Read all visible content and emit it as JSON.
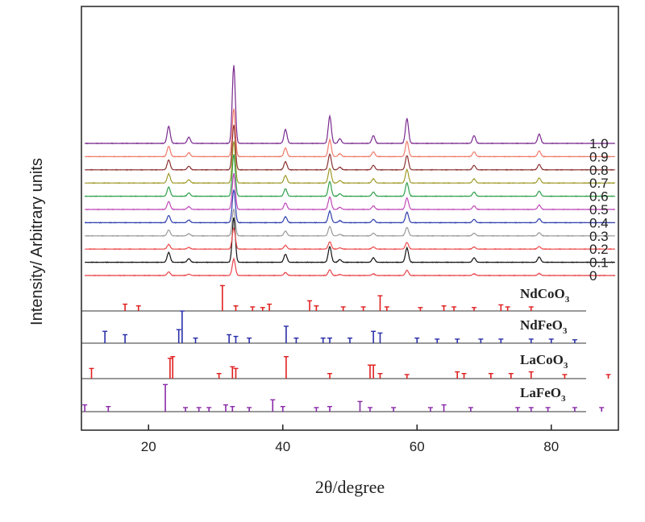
{
  "chart_data": {
    "type": "line",
    "xlabel": "2θ/degree",
    "ylabel": "Intensity/ Arbitrary units",
    "xlim": [
      10,
      90
    ],
    "xticks": [
      20,
      40,
      60,
      80
    ],
    "grid": false,
    "peaks_2theta": [
      23.0,
      26.0,
      32.7,
      40.4,
      47.0,
      48.5,
      53.5,
      58.5,
      68.5,
      78.2
    ],
    "peak_relative_intensity": [
      0.22,
      0.08,
      1.0,
      0.18,
      0.35,
      0.06,
      0.1,
      0.32,
      0.1,
      0.12
    ],
    "series": [
      {
        "label": "0",
        "color": "#e8434a",
        "peak_scale": 0.55
      },
      {
        "label": "0.1",
        "color": "#111111",
        "peak_scale": 1.5
      },
      {
        "label": "0.2",
        "color": "#ee4a4a",
        "peak_scale": 0.7
      },
      {
        "label": "0.3",
        "color": "#9a9a9a",
        "peak_scale": 0.9
      },
      {
        "label": "0.4",
        "color": "#2f3fae",
        "peak_scale": 1.1
      },
      {
        "label": "0.5",
        "color": "#c04ab8",
        "peak_scale": 1.2
      },
      {
        "label": "0.6",
        "color": "#2fa04a",
        "peak_scale": 1.4
      },
      {
        "label": "0.7",
        "color": "#9f9a2a",
        "peak_scale": 1.4
      },
      {
        "label": "0.8",
        "color": "#8a3030",
        "peak_scale": 1.5
      },
      {
        "label": "0.9",
        "color": "#f07a6a",
        "peak_scale": 1.6
      },
      {
        "label": "1.0",
        "color": "#7a2a8f",
        "peak_scale": 2.6
      }
    ],
    "references": [
      {
        "name": "NdCoO",
        "subscript": "3",
        "color": "#e02020",
        "peaks": [
          [
            16.5,
            0.2
          ],
          [
            18.5,
            0.15
          ],
          [
            31.0,
            0.75
          ],
          [
            33.0,
            0.15
          ],
          [
            35.5,
            0.12
          ],
          [
            37.0,
            0.1
          ],
          [
            38.0,
            0.2
          ],
          [
            44.0,
            0.3
          ],
          [
            45.0,
            0.15
          ],
          [
            49.0,
            0.12
          ],
          [
            52.0,
            0.12
          ],
          [
            54.5,
            0.45
          ],
          [
            55.5,
            0.12
          ],
          [
            60.5,
            0.1
          ],
          [
            64.0,
            0.15
          ],
          [
            65.5,
            0.12
          ],
          [
            68.5,
            0.1
          ],
          [
            72.5,
            0.18
          ],
          [
            73.5,
            0.12
          ],
          [
            77.0,
            0.12
          ]
        ]
      },
      {
        "name": "NdFeO",
        "subscript": "3",
        "color": "#2a2fa8",
        "peaks": [
          [
            13.5,
            0.35
          ],
          [
            16.5,
            0.25
          ],
          [
            24.5,
            0.4
          ],
          [
            25.0,
            0.95
          ],
          [
            27.0,
            0.15
          ],
          [
            32.0,
            0.25
          ],
          [
            33.0,
            0.2
          ],
          [
            35.0,
            0.15
          ],
          [
            40.5,
            0.5
          ],
          [
            42.0,
            0.15
          ],
          [
            46.0,
            0.15
          ],
          [
            47.0,
            0.15
          ],
          [
            50.0,
            0.15
          ],
          [
            53.5,
            0.35
          ],
          [
            54.5,
            0.3
          ],
          [
            60.0,
            0.15
          ],
          [
            63.0,
            0.12
          ],
          [
            66.0,
            0.12
          ],
          [
            69.5,
            0.12
          ],
          [
            72.5,
            0.12
          ],
          [
            77.0,
            0.12
          ],
          [
            80.0,
            0.12
          ],
          [
            83.5,
            0.1
          ]
        ]
      },
      {
        "name": "LaCoO",
        "subscript": "3",
        "color": "#e02020",
        "peaks": [
          [
            11.5,
            0.3
          ],
          [
            23.2,
            0.6
          ],
          [
            23.6,
            0.65
          ],
          [
            30.5,
            0.15
          ],
          [
            32.5,
            0.35
          ],
          [
            33.0,
            0.3
          ],
          [
            40.5,
            0.65
          ],
          [
            47.0,
            0.15
          ],
          [
            53.0,
            0.4
          ],
          [
            53.5,
            0.4
          ],
          [
            54.5,
            0.15
          ],
          [
            58.5,
            0.12
          ],
          [
            66.0,
            0.2
          ],
          [
            67.0,
            0.15
          ],
          [
            71.0,
            0.15
          ],
          [
            74.0,
            0.15
          ],
          [
            77.0,
            0.2
          ],
          [
            82.0,
            0.12
          ],
          [
            88.5,
            0.12
          ]
        ]
      },
      {
        "name": "LaFeO",
        "subscript": "3",
        "color": "#8a2aa8",
        "peaks": [
          [
            10.5,
            0.2
          ],
          [
            14.0,
            0.15
          ],
          [
            22.5,
            0.8
          ],
          [
            25.5,
            0.12
          ],
          [
            27.5,
            0.12
          ],
          [
            29.0,
            0.12
          ],
          [
            31.5,
            0.2
          ],
          [
            32.5,
            0.15
          ],
          [
            35.0,
            0.12
          ],
          [
            38.5,
            0.35
          ],
          [
            40.0,
            0.15
          ],
          [
            45.0,
            0.12
          ],
          [
            47.0,
            0.15
          ],
          [
            51.5,
            0.3
          ],
          [
            53.0,
            0.12
          ],
          [
            56.5,
            0.12
          ],
          [
            62.0,
            0.12
          ],
          [
            64.0,
            0.2
          ],
          [
            68.0,
            0.12
          ],
          [
            75.0,
            0.12
          ],
          [
            77.0,
            0.12
          ],
          [
            79.5,
            0.12
          ],
          [
            83.5,
            0.12
          ],
          [
            87.5,
            0.12
          ]
        ]
      }
    ]
  },
  "axes": {
    "x_title": "2θ/degree",
    "y_title": "Intensity/ Arbitrary units"
  }
}
